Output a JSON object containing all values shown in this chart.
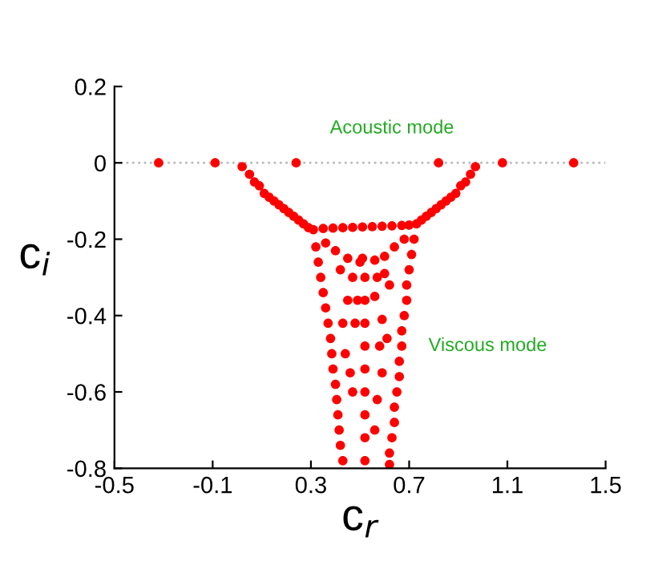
{
  "chart_data": {
    "type": "scatter",
    "xlabel": "c$_{r}$",
    "ylabel": "c$_{i}$",
    "xlim": [
      -0.5,
      1.5
    ],
    "xticks": [
      -0.5,
      -0.1,
      0.3,
      0.7,
      1.1,
      1.5
    ],
    "ylim": [
      -0.8,
      0.2
    ],
    "yticks": [
      -0.8,
      -0.6,
      -0.4,
      -0.2,
      0,
      0.2
    ],
    "marker": "circle",
    "grid": false,
    "legend": false,
    "ref_lines": [
      {
        "axis": "y",
        "value": 0,
        "color": "#bbbbbb",
        "line_style": "dotted"
      }
    ],
    "annotations": [
      "Acoustic mode",
      "Viscous mode"
    ],
    "series": [
      {
        "color": "#ff0000",
        "x": [
          -0.32,
          -0.09,
          0.24,
          0.82,
          1.08,
          1.37,
          0.02,
          0.05,
          0.07,
          0.09,
          0.11,
          0.13,
          0.15,
          0.17,
          0.19,
          0.21,
          0.23,
          0.25,
          0.27,
          0.29,
          0.31,
          0.97,
          0.95,
          0.93,
          0.91,
          0.89,
          0.87,
          0.85,
          0.83,
          0.81,
          0.79,
          0.77,
          0.75,
          0.73,
          0.35,
          0.39,
          0.43,
          0.47,
          0.51,
          0.55,
          0.59,
          0.63,
          0.67,
          0.7,
          0.36,
          0.4,
          0.45,
          0.51,
          0.56,
          0.6,
          0.64,
          0.68,
          0.32,
          0.33,
          0.34,
          0.35,
          0.36,
          0.37,
          0.38,
          0.385,
          0.39,
          0.4,
          0.405,
          0.41,
          0.415,
          0.42,
          0.43,
          0.72,
          0.71,
          0.7,
          0.69,
          0.69,
          0.68,
          0.67,
          0.67,
          0.66,
          0.66,
          0.65,
          0.64,
          0.64,
          0.63,
          0.62,
          0.62,
          0.52,
          0.52,
          0.52,
          0.52,
          0.52,
          0.52,
          0.52,
          0.52,
          0.52,
          0.42,
          0.47,
          0.57,
          0.62,
          0.45,
          0.49,
          0.56,
          0.43,
          0.48,
          0.59,
          0.61,
          0.44,
          0.58,
          0.46,
          0.59,
          0.57,
          0.47,
          0.56,
          0.5,
          0.6
        ],
        "values": [
          0,
          0,
          0,
          0,
          0,
          0,
          -0.01,
          -0.03,
          -0.05,
          -0.06,
          -0.08,
          -0.09,
          -0.1,
          -0.11,
          -0.12,
          -0.13,
          -0.14,
          -0.15,
          -0.16,
          -0.17,
          -0.175,
          -0.01,
          -0.03,
          -0.05,
          -0.06,
          -0.08,
          -0.09,
          -0.1,
          -0.11,
          -0.12,
          -0.13,
          -0.14,
          -0.15,
          -0.16,
          -0.172,
          -0.171,
          -0.17,
          -0.169,
          -0.168,
          -0.167,
          -0.166,
          -0.165,
          -0.164,
          -0.163,
          -0.21,
          -0.23,
          -0.25,
          -0.25,
          -0.255,
          -0.245,
          -0.22,
          -0.2,
          -0.22,
          -0.26,
          -0.3,
          -0.34,
          -0.38,
          -0.42,
          -0.46,
          -0.5,
          -0.54,
          -0.58,
          -0.62,
          -0.66,
          -0.7,
          -0.74,
          -0.78,
          -0.2,
          -0.24,
          -0.28,
          -0.32,
          -0.36,
          -0.4,
          -0.44,
          -0.48,
          -0.52,
          -0.56,
          -0.6,
          -0.64,
          -0.68,
          -0.72,
          -0.76,
          -0.79,
          -0.3,
          -0.36,
          -0.42,
          -0.48,
          -0.54,
          -0.6,
          -0.66,
          -0.72,
          -0.78,
          -0.28,
          -0.3,
          -0.3,
          -0.32,
          -0.36,
          -0.36,
          -0.35,
          -0.42,
          -0.42,
          -0.41,
          -0.46,
          -0.5,
          -0.48,
          -0.55,
          -0.55,
          -0.62,
          -0.6,
          -0.7,
          -0.26,
          -0.29
        ]
      }
    ]
  }
}
